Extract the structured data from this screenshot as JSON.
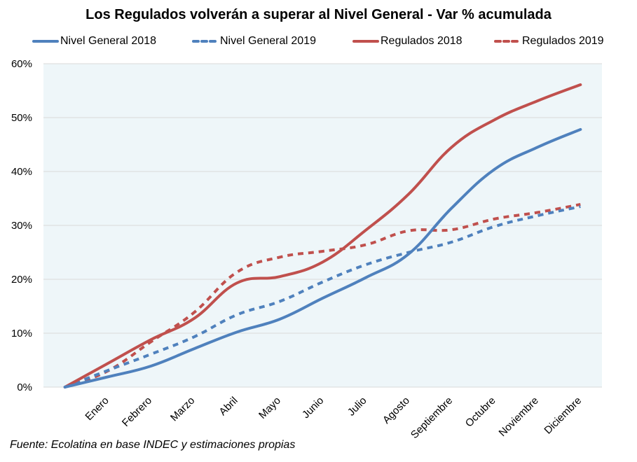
{
  "chart_data": {
    "type": "line",
    "title": "Los Regulados volverán a superar al Nivel General - Var % acumulada",
    "xlabel": "",
    "ylabel": "",
    "categories": [
      "",
      "Enero",
      "Febrero",
      "Marzo",
      "Abril",
      "Mayo",
      "Junio",
      "Julio",
      "Agosto",
      "Septiembre",
      "Octubre",
      "Noviembre",
      "Diciembre"
    ],
    "yticks": [
      "0%",
      "10%",
      "20%",
      "30%",
      "40%",
      "50%",
      "60%"
    ],
    "ylim": [
      0,
      60
    ],
    "grid": true,
    "legend_position": "top",
    "series": [
      {
        "name": "Nivel General 2018",
        "color": "#4F81BD",
        "style": "solid",
        "values": [
          0,
          1.9,
          3.9,
          7.1,
          10.2,
          12.6,
          16.5,
          20.3,
          24.7,
          33.2,
          40.4,
          44.5,
          47.8
        ]
      },
      {
        "name": "Nivel General 2019",
        "color": "#4F81BD",
        "style": "dashed",
        "values": [
          0,
          3.1,
          6.1,
          9.3,
          13.4,
          15.9,
          19.5,
          22.7,
          25.0,
          26.9,
          29.8,
          31.8,
          33.5
        ]
      },
      {
        "name": "Regulados 2018",
        "color": "#C0504D",
        "style": "solid",
        "values": [
          0,
          4.4,
          8.8,
          12.7,
          19.3,
          20.5,
          23.2,
          29.1,
          35.8,
          44.5,
          49.6,
          53.1,
          56.1
        ]
      },
      {
        "name": "Regulados 2019",
        "color": "#C0504D",
        "style": "dashed",
        "values": [
          0,
          3.0,
          8.4,
          13.8,
          21.3,
          24.1,
          25.2,
          26.4,
          29.0,
          29.2,
          31.2,
          32.4,
          33.9
        ]
      }
    ],
    "plot_background": "#EEF6F9",
    "gridline_color": "#D9D9D9"
  },
  "footer": {
    "source": "Fuente: Ecolatina en base INDEC y estimaciones propias"
  }
}
